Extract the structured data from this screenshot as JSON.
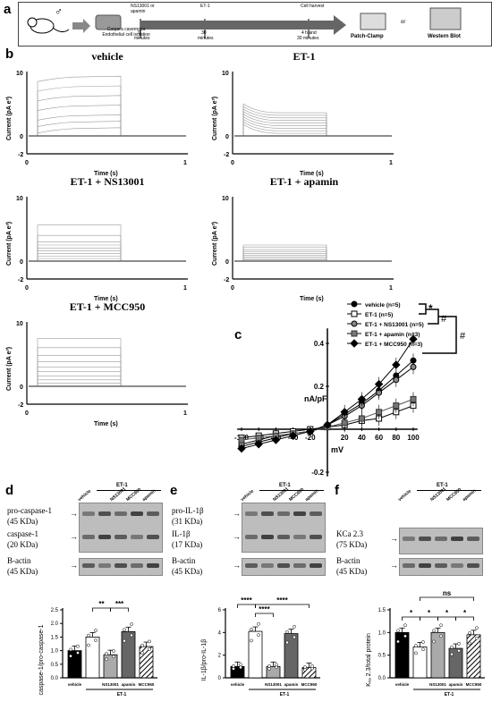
{
  "panel_labels": {
    "a": "a",
    "b": "b",
    "c": "c",
    "d": "d",
    "e": "e",
    "f": "f"
  },
  "workflow": {
    "iso1": "Corpora cavernosa",
    "iso2": "Endothelial cell isolation",
    "agent": "NS13001 or apamin",
    "et1": "ET-1",
    "harvest": "Cell harvest",
    "t0a": "0",
    "t0b": "minutes",
    "t30a": "30",
    "t30b": "minutes",
    "t4a": "4 h and",
    "t4b": "30 minutes",
    "patch": "Patch-Clamp",
    "or": "or",
    "wb": "Western Blot"
  },
  "traces": [
    {
      "title": "vehicle",
      "yaxis": "Current (pA e³)",
      "xaxis": "Time (s)"
    },
    {
      "title": "ET-1",
      "yaxis": "Current (pA e³)",
      "xaxis": "Time (s)"
    },
    {
      "title": "ET-1 + NS13001",
      "yaxis": "Current (pA e³)",
      "xaxis": "Time (s)"
    },
    {
      "title": "ET-1 + apamin",
      "yaxis": "Current (pA e³)",
      "xaxis": "Time (s)"
    },
    {
      "title": "ET-1 + MCC950",
      "yaxis": "Current (pA e³)",
      "xaxis": "Time (s)"
    }
  ],
  "blots": {
    "d": {
      "group": "ET-1",
      "lanes": [
        "vehicle",
        "",
        "NS13001",
        "MCC950",
        "apamin"
      ],
      "rows": [
        "pro-caspase-1",
        "(45 KDa)",
        "caspase-1",
        "(20 KDa)",
        "B-actin",
        "(45 KDa)"
      ]
    },
    "e": {
      "group": "ET-1",
      "lanes": [
        "vehicle",
        "",
        "NS13001",
        "MCC950",
        "apamin"
      ],
      "rows": [
        "pro-IL-1β",
        "(31 KDa)",
        "IL-1β",
        "(17 KDa)",
        "B-actin",
        "(45 KDa)"
      ]
    },
    "f": {
      "group": "ET-1",
      "lanes": [
        "vehicle",
        "",
        "NS13001",
        "MCC950",
        "apamin"
      ],
      "rows": [
        "KCa 2.3",
        "(75 KDa)",
        "B-actin",
        "(45 KDa)"
      ]
    }
  },
  "chart_data": [
    {
      "type": "line",
      "panel": "c",
      "xlabel": "mV",
      "ylabel": "nA/pF",
      "x": [
        -100,
        -80,
        -60,
        -40,
        -20,
        0,
        20,
        40,
        60,
        80,
        100
      ],
      "ylim": [
        -0.2,
        0.4
      ],
      "yticks": [
        "-0.2",
        "0.2",
        "0.4"
      ],
      "xticks": [
        "-100",
        "-80",
        "-60",
        "-40",
        "-20",
        "20",
        "40",
        "60",
        "80",
        "100"
      ],
      "series": [
        {
          "name": "vehicle (n=5)",
          "values": [
            -0.08,
            -0.06,
            -0.04,
            -0.02,
            -0.01,
            0.02,
            0.07,
            0.12,
            0.18,
            0.25,
            0.32
          ]
        },
        {
          "name": "ET-1 (n=5)",
          "values": [
            -0.04,
            -0.03,
            -0.02,
            -0.01,
            0.0,
            0.01,
            0.02,
            0.04,
            0.05,
            0.08,
            0.11
          ]
        },
        {
          "name": "ET-1 + NS13001 (n=5)",
          "values": [
            -0.07,
            -0.05,
            -0.03,
            -0.02,
            -0.01,
            0.02,
            0.06,
            0.11,
            0.17,
            0.23,
            0.29
          ]
        },
        {
          "name": "ET-1 + apamin (n=3)",
          "values": [
            -0.05,
            -0.04,
            -0.03,
            -0.02,
            -0.01,
            0.01,
            0.03,
            0.05,
            0.08,
            0.11,
            0.14
          ]
        },
        {
          "name": "ET-1 + MCC950 (n=3)",
          "values": [
            -0.09,
            -0.07,
            -0.05,
            -0.03,
            -0.01,
            0.02,
            0.08,
            0.14,
            0.21,
            0.3,
            0.42
          ]
        }
      ],
      "significance": [
        "*",
        "#",
        "#"
      ]
    },
    {
      "type": "bar",
      "panel": "d",
      "ylabel": "caspase-1/pro-caspase-1",
      "categories": [
        "vehicle",
        "",
        "NS13001",
        "apamin",
        "MCC950"
      ],
      "group_label": "ET-1",
      "values": [
        1.0,
        1.5,
        0.85,
        1.7,
        1.15
      ],
      "ylim": [
        0,
        2.5
      ],
      "yticks": [
        "0.0",
        "0.5",
        "1.0",
        "1.5",
        "2.0",
        "2.5"
      ],
      "significance": [
        "**",
        "***"
      ]
    },
    {
      "type": "bar",
      "panel": "e",
      "ylabel": "IL-1β/pro-IL-1β",
      "categories": [
        "vehicle",
        "",
        "NS13001",
        "apamin",
        "MCC950"
      ],
      "group_label": "ET-1",
      "values": [
        1.0,
        4.1,
        1.0,
        3.9,
        0.9
      ],
      "ylim": [
        0,
        6
      ],
      "yticks": [
        "0",
        "2",
        "4",
        "6"
      ],
      "significance": [
        "****",
        "****",
        "****"
      ]
    },
    {
      "type": "bar",
      "panel": "f",
      "ylabel": "Kₓₐ 2.3/total protein",
      "categories": [
        "vehicle",
        "",
        "NS13001",
        "apamin",
        "MCC950"
      ],
      "group_label": "ET-1",
      "values": [
        1.0,
        0.68,
        1.0,
        0.65,
        0.95
      ],
      "ylim": [
        0,
        1.5
      ],
      "yticks": [
        "0.0",
        "0.5",
        "1.0",
        "1.5"
      ],
      "significance": [
        "ns",
        "*",
        "*",
        "*",
        "*"
      ]
    }
  ]
}
